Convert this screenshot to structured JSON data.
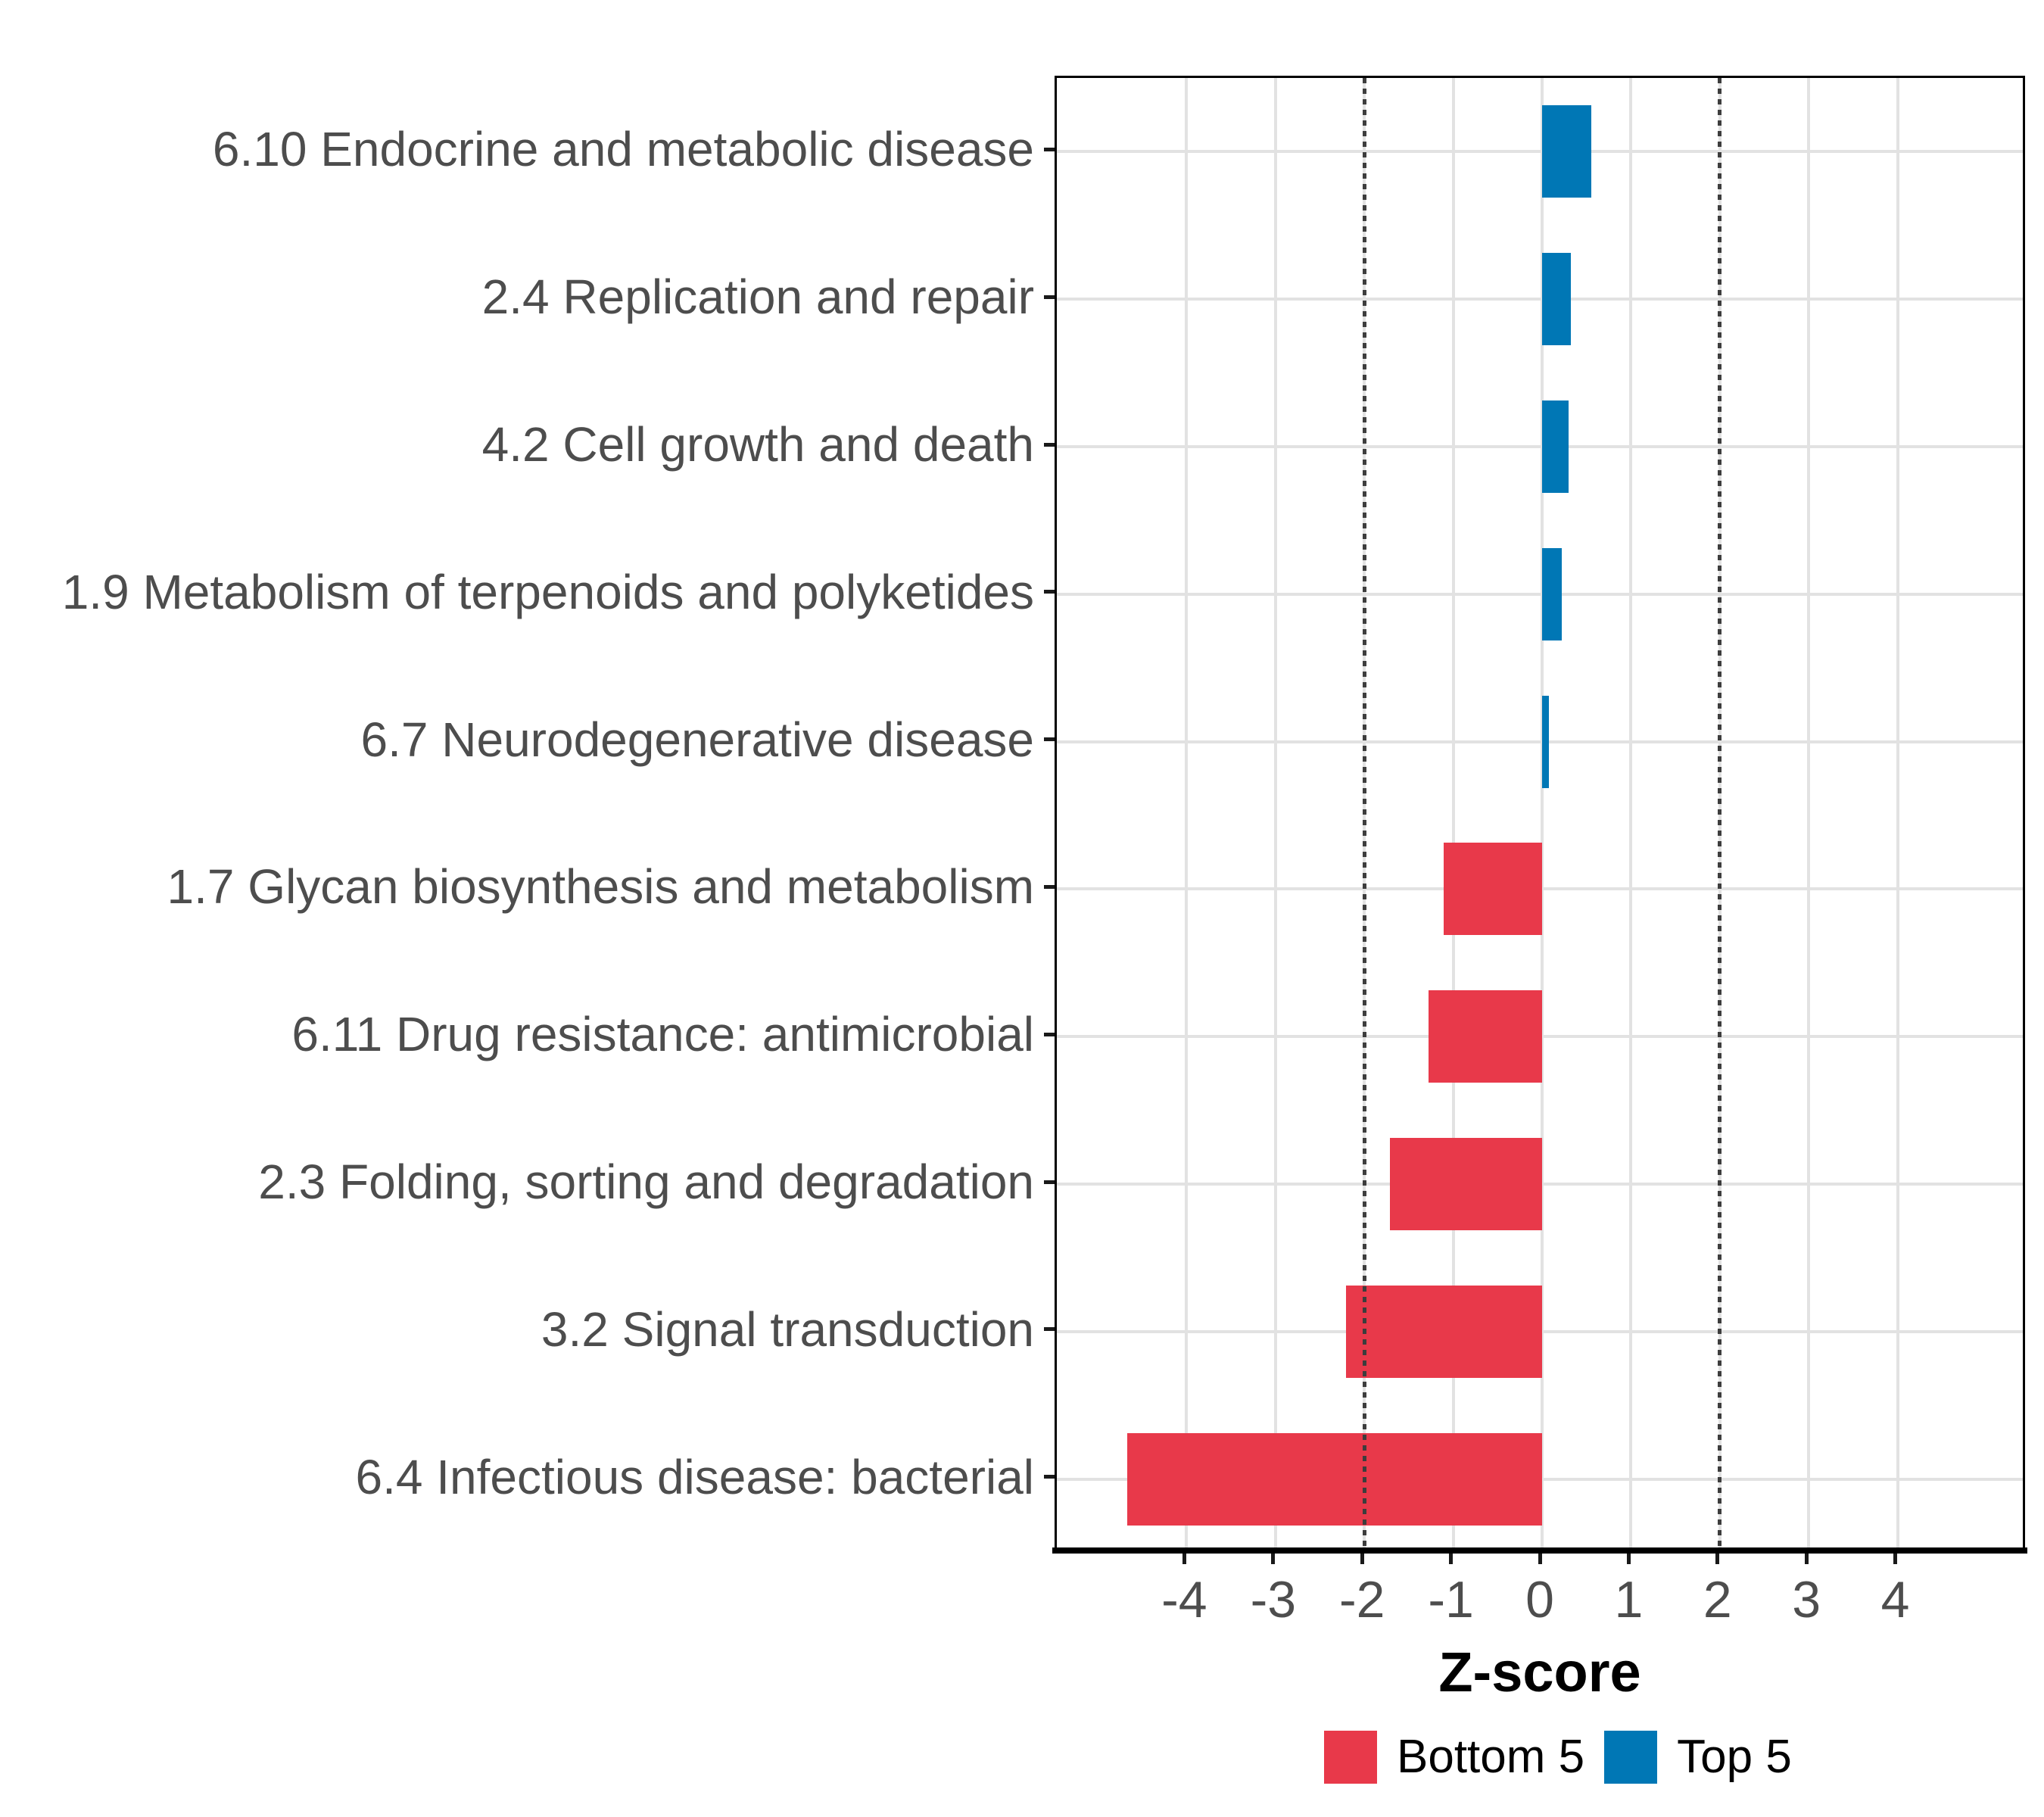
{
  "chart_data": {
    "type": "bar",
    "orientation": "horizontal",
    "xlabel": "Z-score",
    "xlim": [
      -5.46,
      5.46
    ],
    "x_ticks": [
      -4,
      -3,
      -2,
      -1,
      0,
      1,
      2,
      3,
      4
    ],
    "reference_lines": [
      -2,
      2
    ],
    "grid": true,
    "legend_position": "bottom",
    "categories": [
      "6.10 Endocrine and metabolic disease",
      "2.4 Replication and repair",
      "4.2 Cell growth and death",
      "1.9 Metabolism of terpenoids and polyketides",
      "6.7 Neurodegenerative disease",
      "1.7 Glycan biosynthesis and metabolism",
      "6.11 Drug resistance: antimicrobial",
      "2.3 Folding, sorting and degradation",
      "3.2 Signal transduction",
      "6.4 Infectious disease: bacterial"
    ],
    "values": [
      0.55,
      0.32,
      0.3,
      0.22,
      0.08,
      -1.11,
      -1.28,
      -1.71,
      -2.21,
      -4.67
    ],
    "groups": [
      "Top 5",
      "Top 5",
      "Top 5",
      "Top 5",
      "Top 5",
      "Bottom 5",
      "Bottom 5",
      "Bottom 5",
      "Bottom 5",
      "Bottom 5"
    ],
    "colors": {
      "Bottom 5": "#e8394a",
      "Top 5": "#0077b5"
    },
    "legend": [
      {
        "label": "Bottom 5",
        "color": "#e8394a"
      },
      {
        "label": "Top 5",
        "color": "#0077b5"
      }
    ],
    "styles": {
      "gridline_color": "#e2e2e2",
      "refline_color": "#3d3d3d",
      "axis_text_color": "#4d4d4d",
      "axis_line_color": "#000000"
    }
  }
}
